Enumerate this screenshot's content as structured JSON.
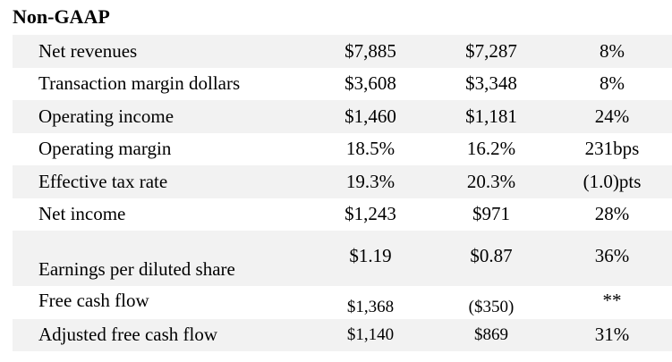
{
  "section_title": "Non-GAAP",
  "rows": [
    {
      "label": "Net revenues",
      "v1": "$7,885",
      "v2": "$7,287",
      "change": "8%"
    },
    {
      "label": "Transaction margin dollars",
      "v1": "$3,608",
      "v2": "$3,348",
      "change": "8%"
    },
    {
      "label": "Operating income",
      "v1": "$1,460",
      "v2": "$1,181",
      "change": "24%"
    },
    {
      "label": "Operating margin",
      "v1": "18.5%",
      "v2": "16.2%",
      "change": "231bps"
    },
    {
      "label": "Effective tax rate",
      "v1": "19.3%",
      "v2": "20.3%",
      "change": "(1.0)pts"
    },
    {
      "label": "Net income",
      "v1": "$1,243",
      "v2": "$971",
      "change": "28%"
    },
    {
      "label": "Earnings per diluted share",
      "v1": "$1.19",
      "v2": "$0.87",
      "change": "36%"
    },
    {
      "label": "Free cash flow",
      "v1": "$1,368",
      "v2": "($350)",
      "change": "**"
    },
    {
      "label": "Adjusted free cash flow",
      "v1": "$1,140",
      "v2": "$869",
      "change": "31%"
    }
  ]
}
